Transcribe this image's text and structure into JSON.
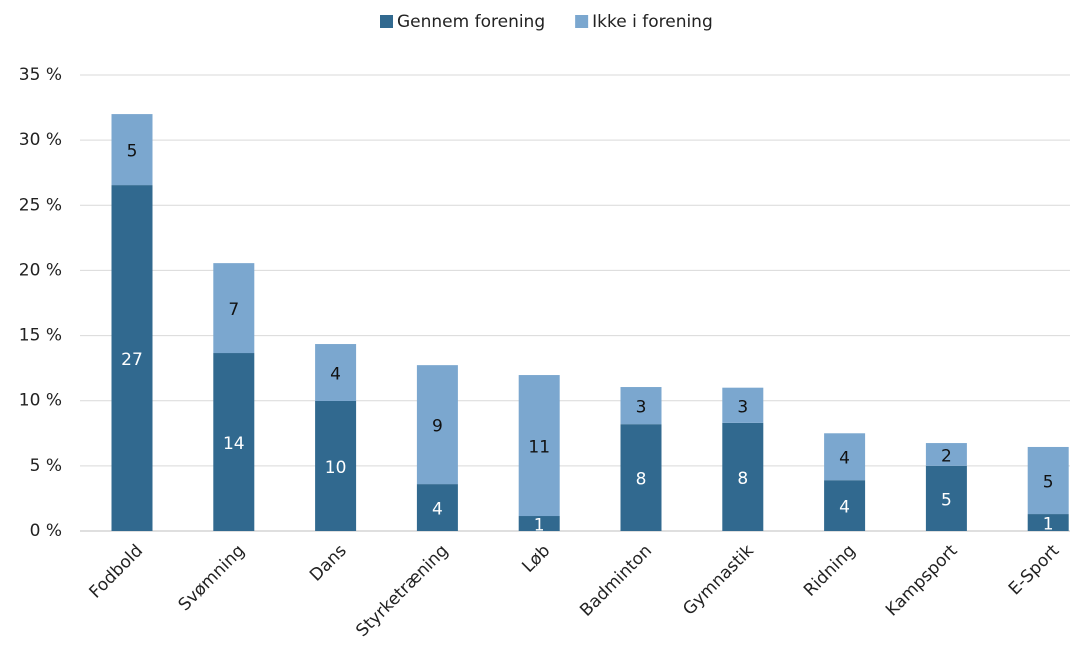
{
  "chart_data": {
    "type": "stacked_bar",
    "categories": [
      "Fodbold",
      "Svømning",
      "Dans",
      "Styrketræning",
      "Løb",
      "Badminton",
      "Gymnastik",
      "Ridning",
      "Kampsport",
      "E-Sport"
    ],
    "series": [
      {
        "name": "Gennem forening",
        "color": "#31698f",
        "values": [
          26.55,
          13.66,
          9.98,
          3.6,
          1.15,
          8.2,
          8.3,
          3.9,
          5.0,
          1.3
        ],
        "value_labels": [
          "27",
          "14",
          "10",
          "4",
          "1",
          "8",
          "8",
          "4",
          "5",
          "1"
        ]
      },
      {
        "name": "Ikke i forening",
        "color": "#7ba7cf",
        "values": [
          5.45,
          6.9,
          4.37,
          9.13,
          10.82,
          2.85,
          2.7,
          3.6,
          1.75,
          5.15
        ],
        "value_labels": [
          "5",
          "7",
          "4",
          "9",
          "11",
          "3",
          "3",
          "4",
          "2",
          "5"
        ]
      }
    ],
    "ylim": [
      0,
      35
    ],
    "yticks": [
      {
        "value": 0,
        "label": "0 %"
      },
      {
        "value": 5,
        "label": "5 %"
      },
      {
        "value": 10,
        "label": "10 %"
      },
      {
        "value": 15,
        "label": "15 %"
      },
      {
        "value": 20,
        "label": "20 %"
      },
      {
        "value": 25,
        "label": "25 %"
      },
      {
        "value": 30,
        "label": "30 %"
      },
      {
        "value": 35,
        "label": "35 %"
      }
    ],
    "grid": true,
    "legend": "top"
  }
}
